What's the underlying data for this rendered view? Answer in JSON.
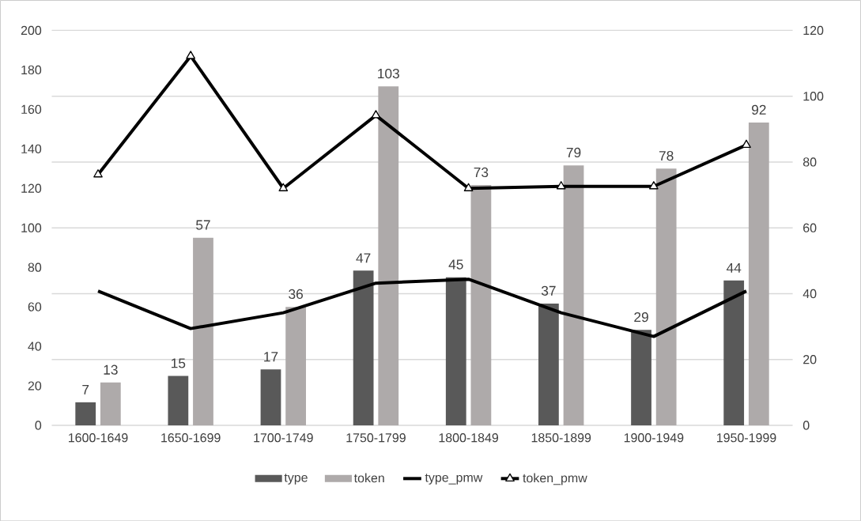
{
  "chart_data": {
    "type": "bar",
    "categories": [
      "1600-1649",
      "1650-1699",
      "1700-1749",
      "1750-1799",
      "1800-1849",
      "1850-1899",
      "1900-1949",
      "1950-1999"
    ],
    "series": [
      {
        "name": "type",
        "axis": "y2",
        "color": "#595959",
        "values": [
          7,
          15,
          17,
          47,
          45,
          37,
          29,
          44
        ],
        "value_labels": [
          "7",
          "15",
          "17",
          "47",
          "45",
          "37",
          "29",
          "44"
        ]
      },
      {
        "name": "token",
        "axis": "y2",
        "color": "#aeaaaa",
        "values": [
          13,
          57,
          36,
          103,
          73,
          79,
          78,
          92
        ],
        "value_labels": [
          "13",
          "57",
          "36",
          "103",
          "73",
          "79",
          "78",
          "92"
        ]
      },
      {
        "name": "type_pmw",
        "type": "line",
        "axis": "y",
        "color": "#000000",
        "marker": "none",
        "values": [
          68,
          49,
          57,
          72,
          74,
          57,
          45,
          68
        ]
      },
      {
        "name": "token_pmw",
        "type": "line",
        "axis": "y",
        "color": "#000000",
        "marker": "triangle",
        "values": [
          127,
          187,
          120,
          157,
          120,
          121,
          121,
          142
        ]
      }
    ],
    "ylim": [
      0,
      200
    ],
    "yticks": [
      0,
      20,
      40,
      60,
      80,
      100,
      120,
      140,
      160,
      180,
      200
    ],
    "y2lim": [
      0,
      120
    ],
    "y2ticks": [
      0,
      20,
      40,
      60,
      80,
      100,
      120
    ],
    "grid": "y",
    "legend": "bottom"
  }
}
